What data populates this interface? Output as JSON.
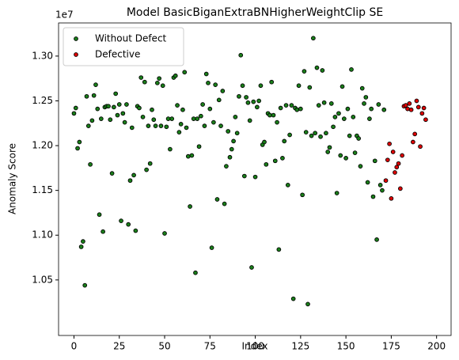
{
  "chart_data": {
    "type": "scatter",
    "title": "Model BasicBiganExtraBNHigherWeightClip SE",
    "x_label": "Index",
    "y_label": "Anomaly Score",
    "y_offset_label": "1e7",
    "xlim": [
      -8.5,
      208
    ],
    "ylim": [
      0.988,
      1.337
    ],
    "xticks": [
      0,
      25,
      50,
      75,
      100,
      125,
      150,
      175,
      200
    ],
    "yticks": [
      {
        "value": 1.05,
        "label": "1.05"
      },
      {
        "value": 1.1,
        "label": "1.10"
      },
      {
        "value": 1.15,
        "label": "1.15"
      },
      {
        "value": 1.2,
        "label": "1.20"
      },
      {
        "value": 1.25,
        "label": "1.25"
      },
      {
        "value": 1.3,
        "label": "1.30"
      }
    ],
    "legend": "upper left",
    "series": [
      {
        "name": "Without Defect",
        "color": "#1a7f1a",
        "x": [
          0,
          1,
          2,
          3,
          4,
          5,
          6,
          7,
          8,
          9,
          10,
          11,
          12,
          13,
          14,
          15,
          16,
          17,
          18,
          19,
          20,
          21,
          22,
          23,
          24,
          25,
          26,
          27,
          28,
          29,
          30,
          31,
          32,
          33,
          34,
          35,
          36,
          37,
          38,
          39,
          40,
          41,
          42,
          43,
          44,
          45,
          46,
          47,
          48,
          49,
          50,
          51,
          52,
          53,
          54,
          55,
          56,
          57,
          58,
          59,
          60,
          61,
          62,
          63,
          64,
          65,
          66,
          67,
          68,
          69,
          70,
          71,
          72,
          73,
          74,
          75,
          76,
          77,
          78,
          79,
          80,
          81,
          82,
          83,
          84,
          85,
          86,
          87,
          88,
          89,
          90,
          91,
          92,
          93,
          94,
          95,
          96,
          97,
          98,
          99,
          100,
          101,
          102,
          103,
          104,
          105,
          106,
          107,
          108,
          109,
          110,
          111,
          112,
          113,
          114,
          115,
          116,
          117,
          118,
          119,
          120,
          121,
          122,
          123,
          124,
          125,
          126,
          127,
          128,
          129,
          130,
          131,
          132,
          133,
          134,
          135,
          136,
          137,
          138,
          139,
          140,
          141,
          142,
          143,
          144,
          145,
          146,
          147,
          148,
          149,
          150,
          151,
          152,
          153,
          154,
          155,
          156,
          157,
          158,
          159,
          160,
          161,
          162,
          163,
          164,
          165,
          166,
          167,
          168,
          169,
          170,
          171
        ],
        "values": [
          1.236,
          1.242,
          1.197,
          1.204,
          1.087,
          1.093,
          1.044,
          1.255,
          1.222,
          1.179,
          1.228,
          1.256,
          1.268,
          1.241,
          1.123,
          1.23,
          1.104,
          1.243,
          1.244,
          1.244,
          1.229,
          1.169,
          1.243,
          1.258,
          1.234,
          1.246,
          1.116,
          1.236,
          1.226,
          1.246,
          1.112,
          1.161,
          1.22,
          1.167,
          1.105,
          1.244,
          1.242,
          1.276,
          1.232,
          1.271,
          1.173,
          1.222,
          1.18,
          1.24,
          1.229,
          1.222,
          1.27,
          1.275,
          1.222,
          1.267,
          1.102,
          1.221,
          1.23,
          1.196,
          1.23,
          1.276,
          1.278,
          1.245,
          1.215,
          1.224,
          1.24,
          1.282,
          1.22,
          1.188,
          1.132,
          1.189,
          1.23,
          1.058,
          1.23,
          1.199,
          1.233,
          1.246,
          1.222,
          1.28,
          1.27,
          1.241,
          1.086,
          1.226,
          1.268,
          1.14,
          1.251,
          1.222,
          1.261,
          1.135,
          1.177,
          1.216,
          1.187,
          1.196,
          1.205,
          1.232,
          1.214,
          1.255,
          1.301,
          1.267,
          1.166,
          1.254,
          1.248,
          1.228,
          1.064,
          1.249,
          1.165,
          1.243,
          1.25,
          1.267,
          1.201,
          1.204,
          1.179,
          1.236,
          1.234,
          1.271,
          1.234,
          1.183,
          1.226,
          1.084,
          1.242,
          1.186,
          1.205,
          1.245,
          1.156,
          1.212,
          1.245,
          1.029,
          1.242,
          1.24,
          1.267,
          1.241,
          1.145,
          1.283,
          1.215,
          1.023,
          1.265,
          1.211,
          1.32,
          1.214,
          1.287,
          1.245,
          1.21,
          1.284,
          1.248,
          1.214,
          1.193,
          1.198,
          1.247,
          1.221,
          1.232,
          1.147,
          1.236,
          1.189,
          1.266,
          1.23,
          1.186,
          1.241,
          1.211,
          1.285,
          1.232,
          1.192,
          1.211,
          1.208,
          1.177,
          1.264,
          1.247,
          1.254,
          1.159,
          1.23,
          1.241,
          1.143,
          1.183,
          1.095,
          1.246,
          1.156,
          1.15,
          1.24
        ]
      },
      {
        "name": "Defective",
        "color": "#e00000",
        "x": [
          172,
          173,
          174,
          175,
          176,
          177,
          178,
          179,
          180,
          181,
          182,
          183,
          184,
          185,
          186,
          187,
          188,
          189,
          190,
          191,
          192,
          193,
          194
        ],
        "values": [
          1.161,
          1.184,
          1.202,
          1.141,
          1.193,
          1.17,
          1.176,
          1.18,
          1.152,
          1.189,
          1.244,
          1.245,
          1.241,
          1.247,
          1.24,
          1.204,
          1.213,
          1.25,
          1.243,
          1.199,
          1.236,
          1.242,
          1.229
        ]
      }
    ]
  }
}
